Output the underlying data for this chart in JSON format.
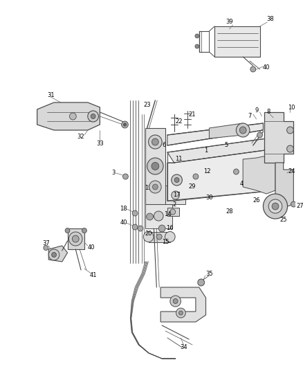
{
  "bg_color": "#ffffff",
  "line_color": "#4a4a4a",
  "text_color": "#000000",
  "fig_width": 4.38,
  "fig_height": 5.33,
  "dpi": 100
}
